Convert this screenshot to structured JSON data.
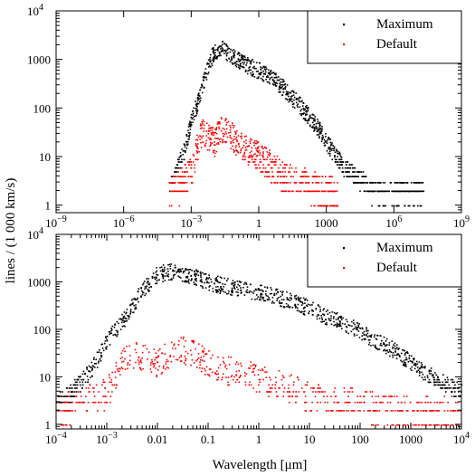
{
  "figure": {
    "ylabel": "lines / (1 000 km/s)",
    "xlabel": "Wavelength [μm]"
  },
  "colors": {
    "maximum": "#000000",
    "default": "#ff0000",
    "axes": "#000000"
  },
  "chart_data": [
    {
      "type": "scatter",
      "xscale": "log",
      "yscale": "log",
      "xlim": [
        1e-09,
        1000000000.0
      ],
      "ylim": [
        0.7,
        10000
      ],
      "xticks": [
        {
          "value": 1e-09,
          "label": "10",
          "exp": "−9"
        },
        {
          "value": 1e-06,
          "label": "10",
          "exp": "−6"
        },
        {
          "value": 0.001,
          "label": "10",
          "exp": "−3"
        },
        {
          "value": 1,
          "label": "1",
          "exp": ""
        },
        {
          "value": 1000,
          "label": "1000",
          "exp": ""
        },
        {
          "value": 1000000.0,
          "label": "10",
          "exp": "6"
        },
        {
          "value": 1000000000.0,
          "label": "10",
          "exp": "9"
        }
      ],
      "yticks": [
        {
          "value": 1,
          "label": "1",
          "exp": ""
        },
        {
          "value": 10,
          "label": "10",
          "exp": ""
        },
        {
          "value": 100,
          "label": "100",
          "exp": ""
        },
        {
          "value": 1000,
          "label": "1000",
          "exp": ""
        },
        {
          "value": 10000,
          "label": "10",
          "exp": "4"
        }
      ],
      "legend_position": "top-right",
      "series": [
        {
          "name": "Maximum",
          "x": [
            0.0001,
            0.0002,
            0.0003,
            0.0005,
            0.0007,
            0.001,
            0.002,
            0.003,
            0.005,
            0.01,
            0.02,
            0.03,
            0.05,
            0.1,
            0.2,
            0.5,
            1,
            2,
            5,
            10,
            20,
            50,
            100,
            200,
            500,
            1000,
            2000,
            5000,
            10000,
            20000,
            50000,
            100000,
            200000,
            1000000,
            5000000,
            20000000
          ],
          "y": [
            3,
            5,
            8,
            15,
            30,
            60,
            150,
            300,
            700,
            1500,
            1700,
            1600,
            1300,
            1000,
            850,
            700,
            600,
            500,
            380,
            280,
            200,
            130,
            90,
            60,
            35,
            20,
            12,
            7,
            5,
            4,
            3,
            2,
            2,
            2,
            2,
            2
          ]
        },
        {
          "name": "Default",
          "x": [
            0.0001,
            0.0003,
            0.001,
            0.002,
            0.003,
            0.005,
            0.01,
            0.02,
            0.03,
            0.05,
            0.1,
            0.2,
            0.5,
            1,
            2,
            5,
            10,
            50,
            100,
            500,
            1000,
            3000
          ],
          "y": [
            2,
            3,
            5,
            20,
            30,
            25,
            20,
            35,
            40,
            30,
            20,
            15,
            12,
            10,
            8,
            6,
            4,
            3,
            3,
            2,
            2,
            2
          ]
        }
      ]
    },
    {
      "type": "scatter",
      "xscale": "log",
      "yscale": "log",
      "xlim": [
        0.0001,
        10000
      ],
      "ylim": [
        0.8,
        10000
      ],
      "xticks": [
        {
          "value": 0.0001,
          "label": "10",
          "exp": "−4"
        },
        {
          "value": 0.001,
          "label": "10",
          "exp": "−3"
        },
        {
          "value": 0.01,
          "label": "0.01",
          "exp": ""
        },
        {
          "value": 0.1,
          "label": "0.1",
          "exp": ""
        },
        {
          "value": 1,
          "label": "1",
          "exp": ""
        },
        {
          "value": 10,
          "label": "10",
          "exp": ""
        },
        {
          "value": 100,
          "label": "100",
          "exp": ""
        },
        {
          "value": 1000,
          "label": "1000",
          "exp": ""
        },
        {
          "value": 10000,
          "label": "10",
          "exp": "4"
        }
      ],
      "yticks": [
        {
          "value": 1,
          "label": "1",
          "exp": ""
        },
        {
          "value": 10,
          "label": "10",
          "exp": ""
        },
        {
          "value": 100,
          "label": "100",
          "exp": ""
        },
        {
          "value": 1000,
          "label": "1000",
          "exp": ""
        },
        {
          "value": 10000,
          "label": "10",
          "exp": "4"
        }
      ],
      "legend_position": "top-right",
      "series": [
        {
          "name": "Maximum",
          "x": [
            0.0001,
            0.0002,
            0.0003,
            0.0005,
            0.0007,
            0.001,
            0.002,
            0.003,
            0.005,
            0.01,
            0.02,
            0.03,
            0.05,
            0.1,
            0.2,
            0.5,
            1,
            2,
            5,
            10,
            20,
            50,
            100,
            200,
            500,
            1000,
            2000,
            5000,
            10000
          ],
          "y": [
            3,
            5,
            8,
            15,
            30,
            60,
            150,
            300,
            700,
            1500,
            1700,
            1600,
            1300,
            1000,
            850,
            700,
            600,
            500,
            380,
            280,
            200,
            130,
            90,
            60,
            35,
            20,
            12,
            7,
            5
          ]
        },
        {
          "name": "Default",
          "x": [
            0.0001,
            0.0003,
            0.001,
            0.002,
            0.003,
            0.005,
            0.01,
            0.02,
            0.03,
            0.05,
            0.1,
            0.2,
            0.5,
            1,
            2,
            5,
            10,
            50,
            100,
            500,
            1000,
            3000,
            10000
          ],
          "y": [
            2,
            3,
            5,
            20,
            30,
            25,
            20,
            35,
            40,
            30,
            20,
            15,
            12,
            10,
            8,
            6,
            4,
            3,
            3,
            2,
            2,
            2,
            2
          ]
        }
      ]
    }
  ]
}
